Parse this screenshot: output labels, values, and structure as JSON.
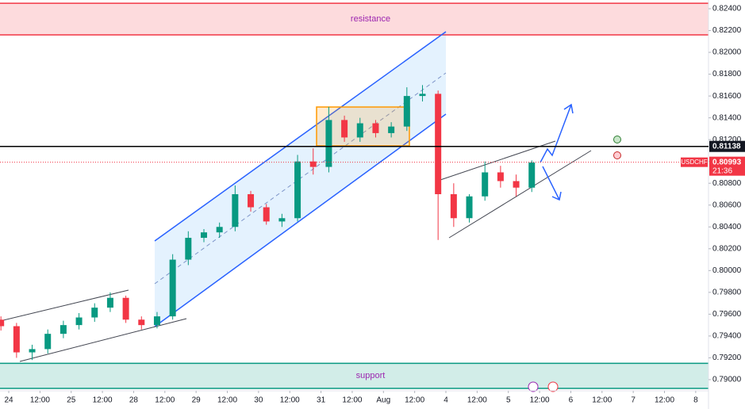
{
  "chart_data": {
    "type": "candlestick",
    "symbol": "USDCHF",
    "zones": [
      {
        "label": "resistance",
        "range": [
          0.8216,
          0.8245
        ],
        "color": "#f23645"
      },
      {
        "label": "support",
        "range": [
          0.7892,
          0.7915
        ],
        "color": "#089981"
      }
    ],
    "level": {
      "value": 0.81138,
      "label": "0.81138"
    },
    "last": {
      "value": 0.80993,
      "label": "0.80993",
      "countdown": "21:36"
    },
    "up_color": "#089981",
    "down_color": "#f23645",
    "xlim": [
      -0.28,
      22.41
    ],
    "ylim": [
      0.78898,
      0.8248
    ],
    "x": [
      -0.25,
      0.25,
      0.75,
      1.25,
      1.75,
      2.25,
      2.75,
      3.25,
      3.75,
      4.25,
      4.75,
      5.25,
      5.75,
      6.25,
      6.75,
      7.25,
      7.75,
      8.25,
      8.75,
      9.25,
      9.75,
      10.25,
      10.75,
      11.25,
      11.75,
      12.25,
      12.75,
      13.25,
      13.75,
      14.25,
      14.75,
      15.25,
      15.75,
      16.25,
      16.75
    ],
    "open": [
      0.7955,
      0.7949,
      0.7925,
      0.7928,
      0.7942,
      0.795,
      0.7957,
      0.7966,
      0.7975,
      0.7955,
      0.795,
      0.7958,
      0.801,
      0.803,
      0.8035,
      0.804,
      0.807,
      0.8058,
      0.8045,
      0.8048,
      0.81,
      0.8095,
      0.8138,
      0.8122,
      0.8135,
      0.8126,
      0.8132,
      0.816,
      0.8162,
      0.807,
      0.8048,
      0.8068,
      0.809,
      0.8082,
      0.8076
    ],
    "high": [
      0.7958,
      0.7952,
      0.7932,
      0.7946,
      0.7954,
      0.7961,
      0.797,
      0.798,
      0.7977,
      0.7958,
      0.7962,
      0.8015,
      0.8036,
      0.8038,
      0.8044,
      0.8078,
      0.8073,
      0.8061,
      0.8052,
      0.8106,
      0.8112,
      0.815,
      0.8142,
      0.814,
      0.8138,
      0.8136,
      0.8168,
      0.817,
      0.8165,
      0.808,
      0.807,
      0.81,
      0.8096,
      0.8088,
      0.8101
    ],
    "low": [
      0.7945,
      0.792,
      0.7918,
      0.7924,
      0.7938,
      0.7946,
      0.7953,
      0.7962,
      0.7952,
      0.7946,
      0.7947,
      0.7955,
      0.8005,
      0.8026,
      0.803,
      0.8036,
      0.8054,
      0.8042,
      0.804,
      0.8045,
      0.8088,
      0.809,
      0.8118,
      0.8118,
      0.8122,
      0.8122,
      0.8128,
      0.8155,
      0.8028,
      0.804,
      0.8044,
      0.8064,
      0.8076,
      0.8068,
      0.8072
    ],
    "close": [
      0.7949,
      0.7925,
      0.7928,
      0.7942,
      0.795,
      0.7957,
      0.7966,
      0.7975,
      0.7955,
      0.795,
      0.7958,
      0.801,
      0.803,
      0.8035,
      0.804,
      0.807,
      0.8058,
      0.8045,
      0.8048,
      0.81,
      0.8095,
      0.8138,
      0.8122,
      0.8135,
      0.8126,
      0.8132,
      0.816,
      0.8162,
      0.807,
      0.8048,
      0.8068,
      0.809,
      0.8082,
      0.8076,
      0.8099
    ],
    "xticks": [
      {
        "value": 0,
        "label": "24"
      },
      {
        "value": 1,
        "label": "12:00"
      },
      {
        "value": 2,
        "label": "25"
      },
      {
        "value": 3,
        "label": "12:00"
      },
      {
        "value": 4,
        "label": "28"
      },
      {
        "value": 5,
        "label": "12:00"
      },
      {
        "value": 6,
        "label": "29"
      },
      {
        "value": 7,
        "label": "12:00"
      },
      {
        "value": 8,
        "label": "30"
      },
      {
        "value": 9,
        "label": "12:00"
      },
      {
        "value": 10,
        "label": "31"
      },
      {
        "value": 11,
        "label": "12:00"
      },
      {
        "value": 12,
        "label": "Aug"
      },
      {
        "value": 13,
        "label": "12:00"
      },
      {
        "value": 14,
        "label": "4"
      },
      {
        "value": 15,
        "label": "12:00"
      },
      {
        "value": 16,
        "label": "5"
      },
      {
        "value": 17,
        "label": "12:00"
      },
      {
        "value": 18,
        "label": "6"
      },
      {
        "value": 19,
        "label": "12:00"
      },
      {
        "value": 20,
        "label": "7"
      },
      {
        "value": 21,
        "label": "12:00"
      },
      {
        "value": 22,
        "label": "8"
      }
    ],
    "yticks": [
      {
        "value": 0.824,
        "label": "0.82400"
      },
      {
        "value": 0.822,
        "label": "0.82200"
      },
      {
        "value": 0.82,
        "label": "0.82000"
      },
      {
        "value": 0.818,
        "label": "0.81800"
      },
      {
        "value": 0.816,
        "label": "0.81600"
      },
      {
        "value": 0.814,
        "label": "0.81400"
      },
      {
        "value": 0.812,
        "label": "0.81200"
      },
      {
        "value": 0.81,
        "label": "0.81000"
      },
      {
        "value": 0.808,
        "label": "0.80800"
      },
      {
        "value": 0.806,
        "label": "0.80600"
      },
      {
        "value": 0.804,
        "label": "0.80400"
      },
      {
        "value": 0.802,
        "label": "0.80200"
      },
      {
        "value": 0.8,
        "label": "0.80000"
      },
      {
        "value": 0.798,
        "label": "0.79800"
      },
      {
        "value": 0.796,
        "label": "0.79600"
      },
      {
        "value": 0.794,
        "label": "0.79400"
      },
      {
        "value": 0.792,
        "label": "0.79200"
      },
      {
        "value": 0.79,
        "label": "0.79000"
      }
    ]
  }
}
